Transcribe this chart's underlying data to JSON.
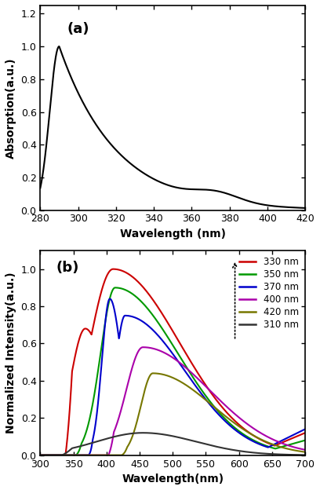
{
  "panel_a": {
    "title": "(a)",
    "xlabel": "Wavelength (nm)",
    "ylabel": "Absorption(a.u.)",
    "xlim": [
      280,
      420
    ],
    "ylim": [
      0,
      1.25
    ],
    "yticks": [
      0.0,
      0.2,
      0.4,
      0.6,
      0.8,
      1.0,
      1.2
    ],
    "xticks": [
      280,
      300,
      320,
      340,
      360,
      380,
      400,
      420
    ]
  },
  "panel_b": {
    "title": "(b)",
    "xlabel": "Wavelength(nm)",
    "ylabel": "Normalized Intensity(a.u.)",
    "xlim": [
      300,
      700
    ],
    "ylim": [
      0,
      1.1
    ],
    "yticks": [
      0.0,
      0.2,
      0.4,
      0.6,
      0.8,
      1.0
    ],
    "xticks": [
      300,
      350,
      400,
      450,
      500,
      550,
      600,
      650,
      700
    ],
    "legend_entries": [
      "330 nm",
      "350 nm",
      "370 nm",
      "400 nm",
      "420 nm",
      "310 nm"
    ],
    "legend_colors": [
      "#cc0000",
      "#009900",
      "#0000cc",
      "#aa00aa",
      "#777700",
      "#333333"
    ]
  },
  "background_color": "#ffffff",
  "line_color_a": "#000000"
}
